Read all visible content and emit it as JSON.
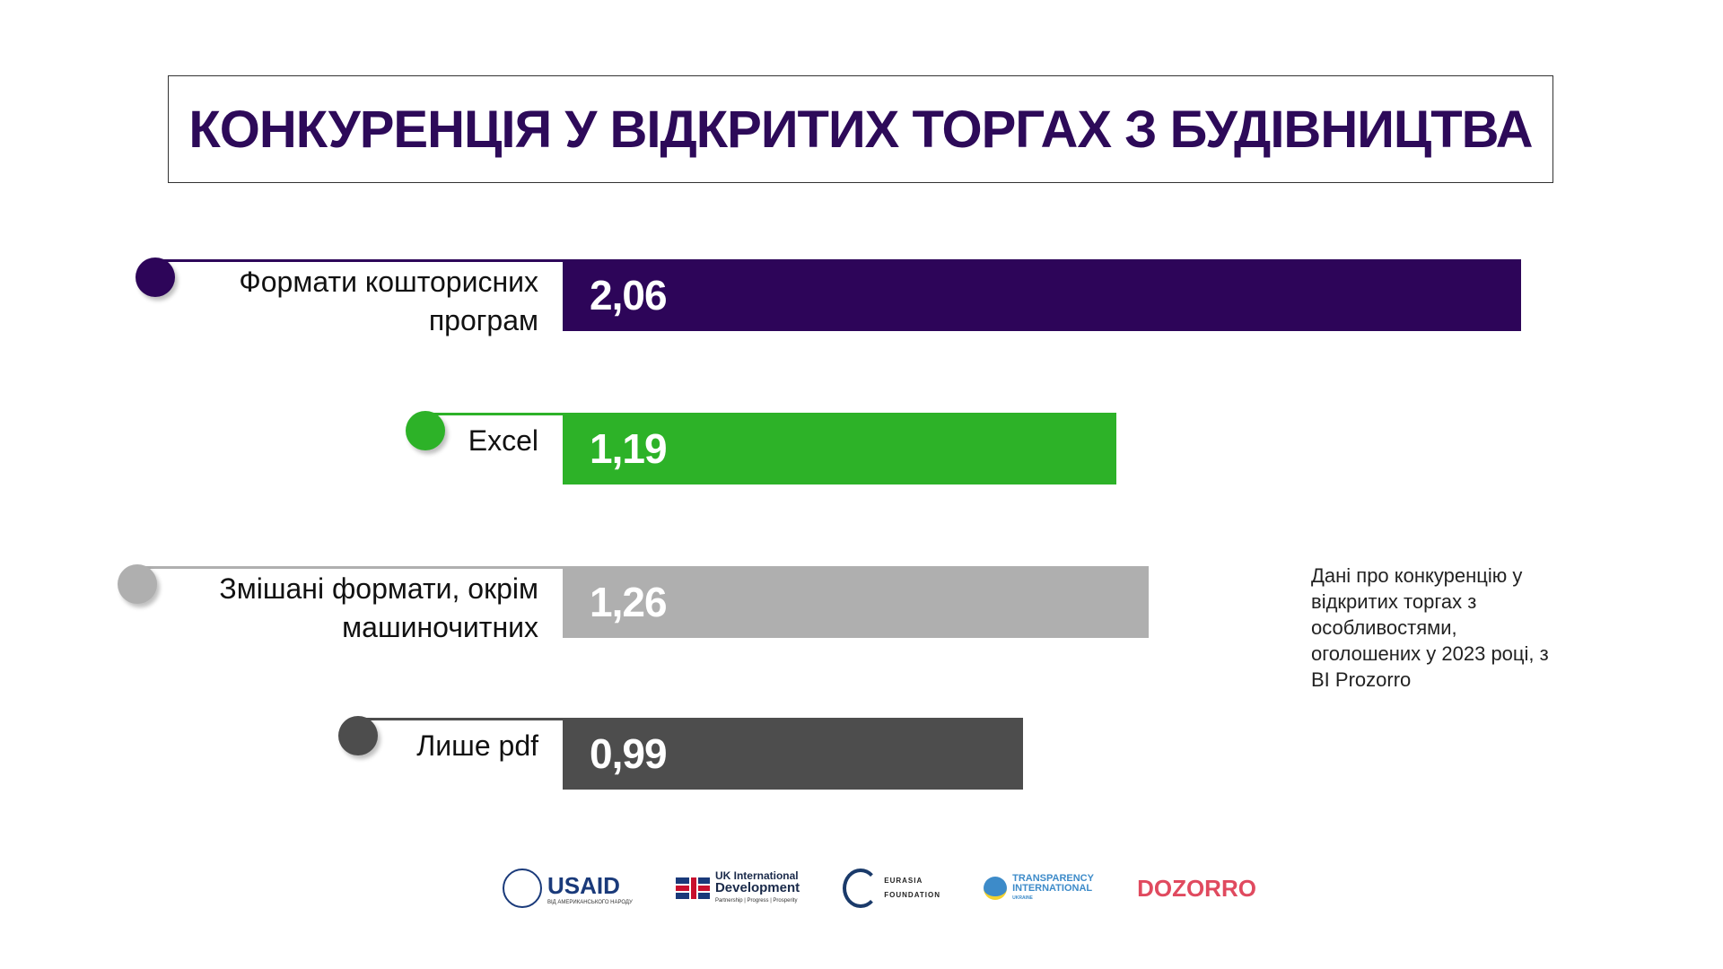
{
  "chart_data": {
    "type": "bar",
    "orientation": "horizontal",
    "title": "КОНКУРЕНЦІЯ У ВІДКРИТИХ ТОРГАХ З БУДІВНИЦТВА",
    "categories": [
      "Формати кошторисних програм",
      "Excel",
      "Змішані формати, окрім машиночитних",
      "Лише pdf"
    ],
    "values": [
      2.06,
      1.19,
      1.26,
      0.99
    ],
    "value_labels": [
      "2,06",
      "1,19",
      "1,26",
      "0,99"
    ],
    "colors": [
      "#2d0559",
      "#2db228",
      "#afafaf",
      "#4d4d4d"
    ],
    "xlim": [
      0,
      2.06
    ],
    "grid": false
  },
  "label_lines": [
    [
      "Формати кошторисних",
      "програм"
    ],
    [
      "Excel"
    ],
    [
      "Змішані формати, окрім",
      "машиночитних"
    ],
    [
      "Лише pdf"
    ]
  ],
  "note": "Дані про конкуренцію у відкритих торгах з особливостями, оголошених у 2023 році, з BI Prozorro",
  "logos": {
    "usaid": "USAID",
    "usaid_sub": "ВІД АМЕРИКАНСЬКОГО НАРОДУ",
    "ukid_1": "UK International",
    "ukid_2": "Development",
    "ukid_sub": "Partnership | Progress | Prosperity",
    "eurasia_1": "EURASIA",
    "eurasia_2": "FOUNDATION",
    "ti_1": "TRANSPARENCY",
    "ti_2": "INTERNATIONAL",
    "ti_3": "UKRAINE",
    "dozorro": "DOZORRO"
  }
}
